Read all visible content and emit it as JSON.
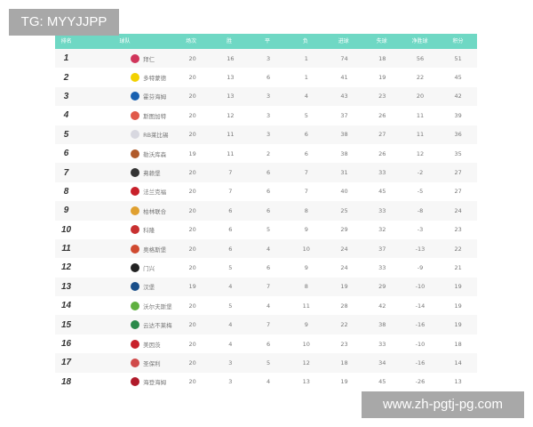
{
  "watermark_top": "TG: MYYJJPP",
  "watermark_bottom": "www.zh-pgtj-pg.com",
  "header_color": "#6fd8c4",
  "columns": [
    "排名",
    "球队",
    "场次",
    "胜",
    "平",
    "负",
    "进球",
    "失球",
    "净胜球",
    "积分"
  ],
  "rows": [
    {
      "rank": "1",
      "team": "拜仁",
      "logo_color": "#d0355b",
      "cells": [
        "20",
        "16",
        "3",
        "1",
        "74",
        "18",
        "56",
        "51"
      ]
    },
    {
      "rank": "2",
      "team": "多特蒙德",
      "logo_color": "#f2d100",
      "cells": [
        "20",
        "13",
        "6",
        "1",
        "41",
        "19",
        "22",
        "45"
      ]
    },
    {
      "rank": "3",
      "team": "霍芬海姆",
      "logo_color": "#1961b0",
      "cells": [
        "20",
        "13",
        "3",
        "4",
        "43",
        "23",
        "20",
        "42"
      ]
    },
    {
      "rank": "4",
      "team": "斯图加特",
      "logo_color": "#e05a4a",
      "cells": [
        "20",
        "12",
        "3",
        "5",
        "37",
        "26",
        "11",
        "39"
      ]
    },
    {
      "rank": "5",
      "team": "RB莱比锡",
      "logo_color": "#d8d8e0",
      "cells": [
        "20",
        "11",
        "3",
        "6",
        "38",
        "27",
        "11",
        "36"
      ]
    },
    {
      "rank": "6",
      "team": "勒沃库森",
      "logo_color": "#b05a2a",
      "cells": [
        "19",
        "11",
        "2",
        "6",
        "38",
        "26",
        "12",
        "35"
      ]
    },
    {
      "rank": "7",
      "team": "弗赖堡",
      "logo_color": "#333333",
      "cells": [
        "20",
        "7",
        "6",
        "7",
        "31",
        "33",
        "-2",
        "27"
      ]
    },
    {
      "rank": "8",
      "team": "法兰克福",
      "logo_color": "#c8202a",
      "cells": [
        "20",
        "7",
        "6",
        "7",
        "40",
        "45",
        "-5",
        "27"
      ]
    },
    {
      "rank": "9",
      "team": "柏林联合",
      "logo_color": "#e0a030",
      "cells": [
        "20",
        "6",
        "6",
        "8",
        "25",
        "33",
        "-8",
        "24"
      ]
    },
    {
      "rank": "10",
      "team": "科隆",
      "logo_color": "#c83030",
      "cells": [
        "20",
        "6",
        "5",
        "9",
        "29",
        "32",
        "-3",
        "23"
      ]
    },
    {
      "rank": "11",
      "team": "奥格斯堡",
      "logo_color": "#d04a30",
      "cells": [
        "20",
        "6",
        "4",
        "10",
        "24",
        "37",
        "-13",
        "22"
      ]
    },
    {
      "rank": "12",
      "team": "门兴",
      "logo_color": "#222222",
      "cells": [
        "20",
        "5",
        "6",
        "9",
        "24",
        "33",
        "-9",
        "21"
      ]
    },
    {
      "rank": "13",
      "team": "汉堡",
      "logo_color": "#1a4f8a",
      "cells": [
        "19",
        "4",
        "7",
        "8",
        "19",
        "29",
        "-10",
        "19"
      ]
    },
    {
      "rank": "14",
      "team": "沃尔夫斯堡",
      "logo_color": "#5fb040",
      "cells": [
        "20",
        "5",
        "4",
        "11",
        "28",
        "42",
        "-14",
        "19"
      ]
    },
    {
      "rank": "15",
      "team": "云达不莱梅",
      "logo_color": "#2a8a4a",
      "cells": [
        "20",
        "4",
        "7",
        "9",
        "22",
        "38",
        "-16",
        "19"
      ]
    },
    {
      "rank": "16",
      "team": "美因茨",
      "logo_color": "#c8202a",
      "cells": [
        "20",
        "4",
        "6",
        "10",
        "23",
        "33",
        "-10",
        "18"
      ]
    },
    {
      "rank": "17",
      "team": "圣保利",
      "logo_color": "#d04a4a",
      "cells": [
        "20",
        "3",
        "5",
        "12",
        "18",
        "34",
        "-16",
        "14"
      ]
    },
    {
      "rank": "18",
      "team": "海登海姆",
      "logo_color": "#b01a2a",
      "cells": [
        "20",
        "3",
        "4",
        "13",
        "19",
        "45",
        "-26",
        "13"
      ]
    }
  ]
}
